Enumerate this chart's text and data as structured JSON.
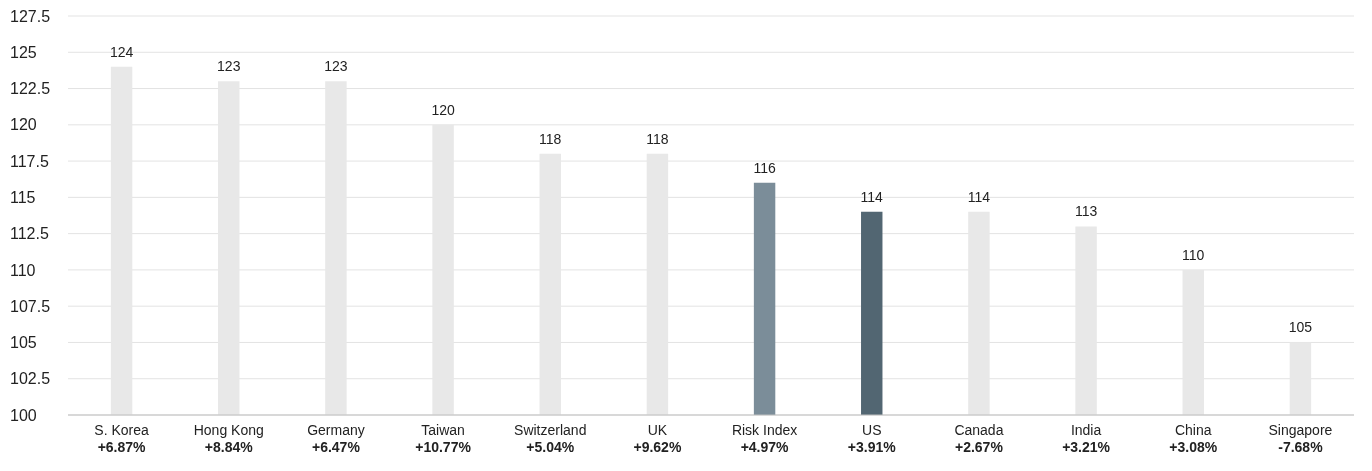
{
  "chart_data": {
    "type": "bar",
    "categories": [
      "S. Korea\n+6.87%",
      "Hong Kong\n+8.84%",
      "Germany\n+6.47%",
      "Taiwan\n+10.77%",
      "Switzerland\n+5.04%",
      "UK\n+9.62%",
      "Risk Index\n+4.97%",
      "US\n+3.91%",
      "Canada\n+2.67%",
      "India\n+3.21%",
      "China\n+3.08%",
      "Singapore\n-7.68%"
    ],
    "values": [
      124,
      123,
      123,
      120,
      118,
      118,
      116,
      114,
      114,
      113,
      110,
      105
    ],
    "colors": [
      "#e8e8e8",
      "#e8e8e8",
      "#e8e8e8",
      "#e8e8e8",
      "#e8e8e8",
      "#e8e8e8",
      "#7b8d99",
      "#526672",
      "#e8e8e8",
      "#e8e8e8",
      "#e8e8e8",
      "#e8e8e8"
    ],
    "ylim": [
      100,
      127.5
    ],
    "yticks": [
      100,
      102.5,
      105,
      107.5,
      110,
      112.5,
      115,
      117.5,
      120,
      122.5,
      125,
      127.5
    ],
    "grid": "y",
    "data_labels": true,
    "legend": false
  }
}
